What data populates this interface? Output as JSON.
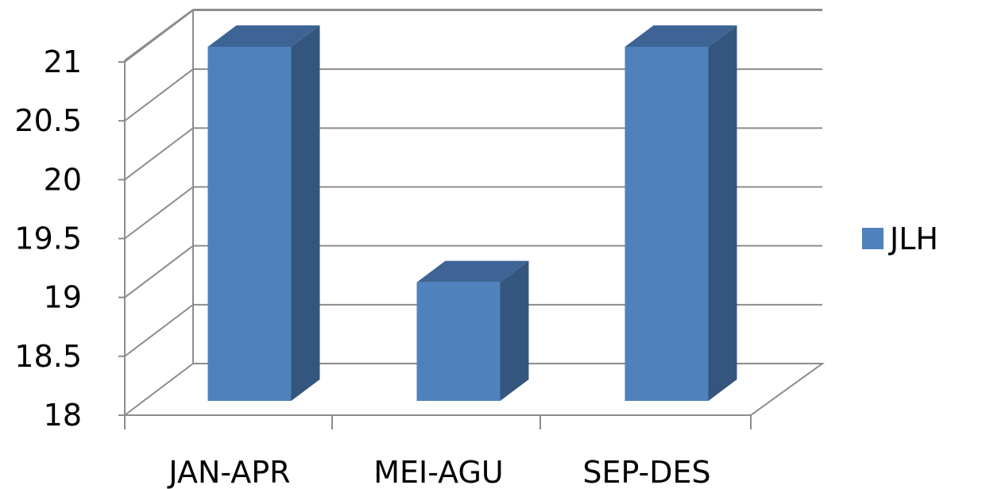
{
  "chart_data": {
    "type": "bar",
    "categories": [
      "JAN-APR",
      "MEI-AGU",
      "SEP-DES"
    ],
    "series": [
      {
        "name": "JLH",
        "values": [
          21,
          19,
          21
        ]
      }
    ],
    "ylim": [
      18,
      21
    ],
    "yticks": [
      "18",
      "18.5",
      "19",
      "19.5",
      "20",
      "20.5",
      "21"
    ],
    "grid": true,
    "style": "3d-column",
    "legend_position": "right",
    "colors": {
      "front": "#4f81bd",
      "side": "#34557d",
      "top": "#3e6496",
      "grid": "#8c8c8c"
    }
  }
}
